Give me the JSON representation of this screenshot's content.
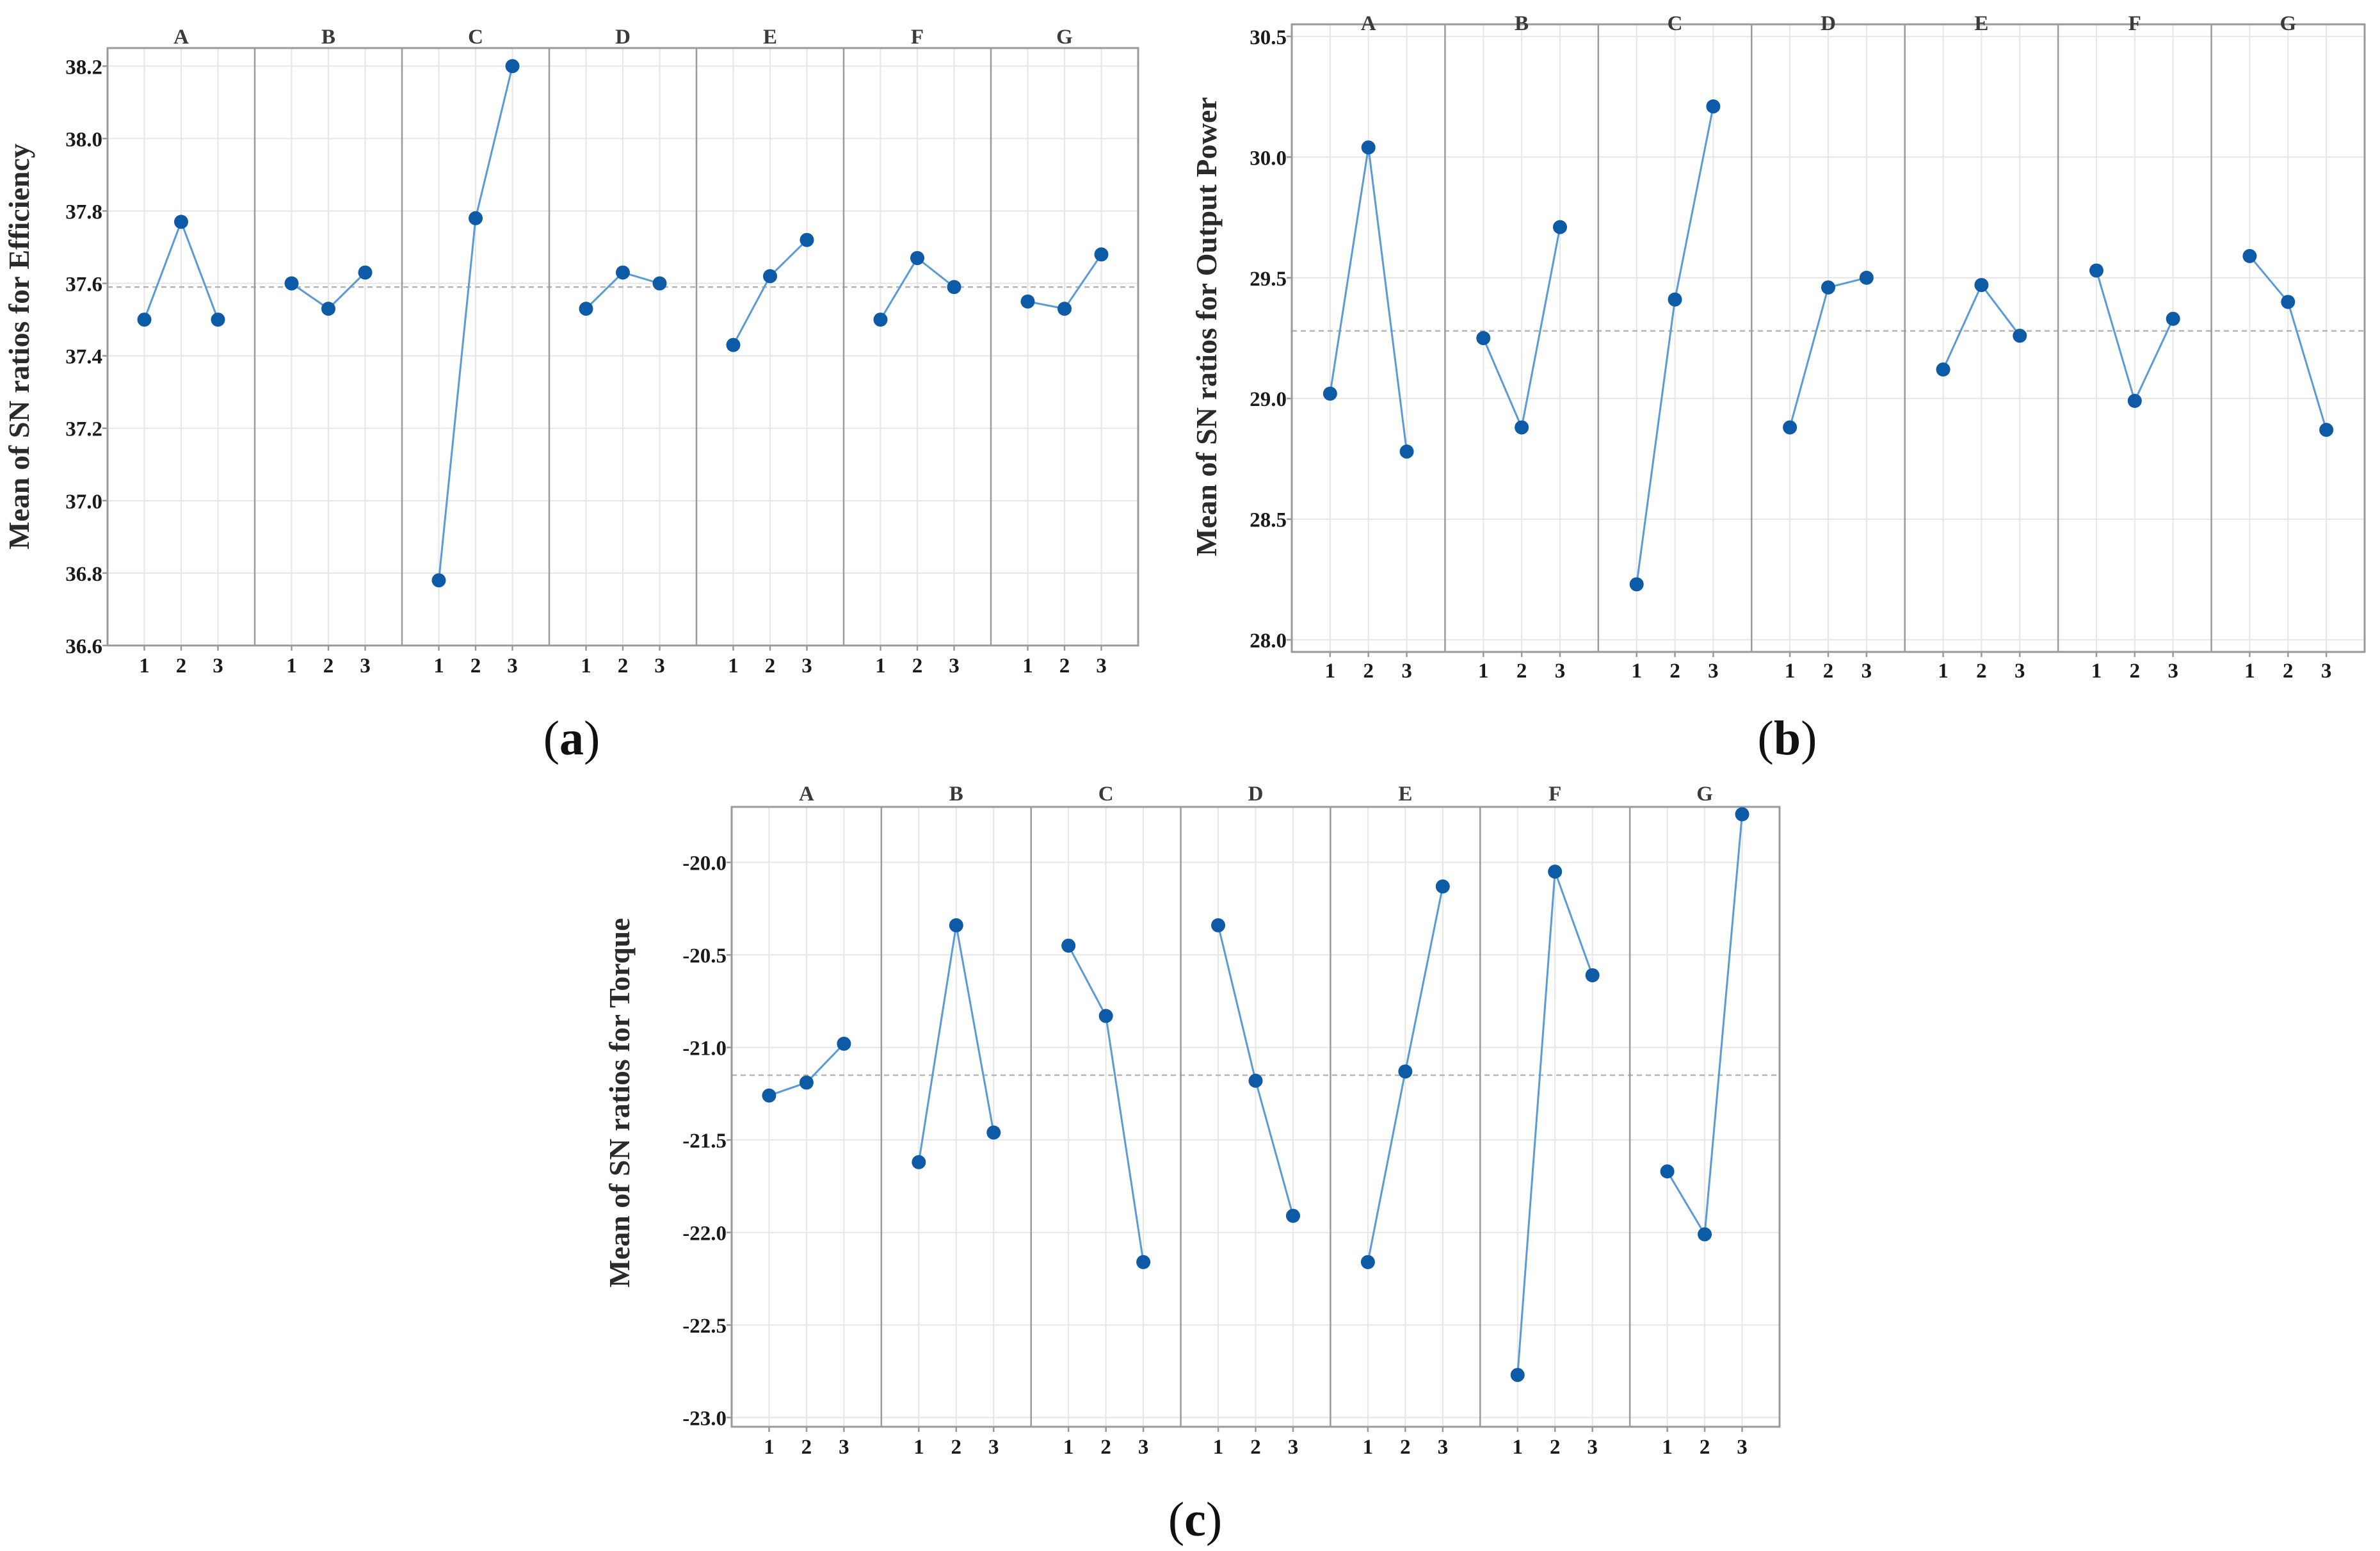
{
  "colors": {
    "point": "#0d5aa7",
    "line": "#5b9bd5",
    "grid": "#e6e6e6",
    "frame": "#9a9a9a",
    "mean_line": "#b5b5b5"
  },
  "chart_data": [
    {
      "type": "line",
      "panel": "a",
      "caption_parts": [
        "(",
        "a",
        ")"
      ],
      "ylabel": "Mean of SN ratios for Efficiency",
      "ylim": [
        36.6,
        38.25
      ],
      "yticks": [
        36.6,
        36.8,
        37.0,
        37.2,
        37.4,
        37.6,
        37.8,
        38.0,
        38.2
      ],
      "ytick_labels": [
        "36.6",
        "36.8",
        "37.0",
        "37.2",
        "37.4",
        "37.6",
        "37.8",
        "38.0",
        "38.2"
      ],
      "mean_line": 37.59,
      "level_labels": [
        "1",
        "2",
        "3"
      ],
      "factors": [
        {
          "name": "A",
          "values": [
            37.5,
            37.77,
            37.5
          ]
        },
        {
          "name": "B",
          "values": [
            37.6,
            37.53,
            37.63
          ]
        },
        {
          "name": "C",
          "values": [
            36.78,
            37.78,
            38.2
          ]
        },
        {
          "name": "D",
          "values": [
            37.53,
            37.63,
            37.6
          ]
        },
        {
          "name": "E",
          "values": [
            37.43,
            37.62,
            37.72
          ]
        },
        {
          "name": "F",
          "values": [
            37.5,
            37.67,
            37.59
          ]
        },
        {
          "name": "G",
          "values": [
            37.55,
            37.53,
            37.68
          ]
        }
      ]
    },
    {
      "type": "line",
      "panel": "b",
      "caption_parts": [
        "(",
        "b",
        ")"
      ],
      "ylabel": "Mean of SN ratios for Output Power",
      "ylim": [
        27.95,
        30.55
      ],
      "yticks": [
        28.0,
        28.5,
        29.0,
        29.5,
        30.0,
        30.5
      ],
      "ytick_labels": [
        "28.0",
        "28.5",
        "29.0",
        "29.5",
        "30.0",
        "30.5"
      ],
      "mean_line": 29.28,
      "level_labels": [
        "1",
        "2",
        "3"
      ],
      "factors": [
        {
          "name": "A",
          "values": [
            29.02,
            30.04,
            28.78
          ]
        },
        {
          "name": "B",
          "values": [
            29.25,
            28.88,
            29.71
          ]
        },
        {
          "name": "C",
          "values": [
            28.23,
            29.41,
            30.21
          ]
        },
        {
          "name": "D",
          "values": [
            28.88,
            29.46,
            29.5
          ]
        },
        {
          "name": "E",
          "values": [
            29.12,
            29.47,
            29.26
          ]
        },
        {
          "name": "F",
          "values": [
            29.53,
            28.99,
            29.33
          ]
        },
        {
          "name": "G",
          "values": [
            29.59,
            29.4,
            28.87
          ]
        }
      ]
    },
    {
      "type": "line",
      "panel": "c",
      "caption_parts": [
        "(",
        "c",
        ")"
      ],
      "ylabel": "Mean of SN ratios for Torque",
      "ylim": [
        -23.05,
        -19.7
      ],
      "yticks": [
        -23.0,
        -22.5,
        -22.0,
        -21.5,
        -21.0,
        -20.5,
        -20.0
      ],
      "ytick_labels": [
        "-23.0",
        "-22.5",
        "-22.0",
        "-21.5",
        "-21.0",
        "-20.5",
        "-20.0"
      ],
      "mean_line": -21.15,
      "level_labels": [
        "1",
        "2",
        "3"
      ],
      "factors": [
        {
          "name": "A",
          "values": [
            -21.26,
            -21.19,
            -20.98
          ]
        },
        {
          "name": "B",
          "values": [
            -21.62,
            -20.34,
            -21.46
          ]
        },
        {
          "name": "C",
          "values": [
            -20.45,
            -20.83,
            -22.16
          ]
        },
        {
          "name": "D",
          "values": [
            -20.34,
            -21.18,
            -21.91
          ]
        },
        {
          "name": "E",
          "values": [
            -22.16,
            -21.13,
            -20.13
          ]
        },
        {
          "name": "F",
          "values": [
            -22.77,
            -20.05,
            -20.61
          ]
        },
        {
          "name": "G",
          "values": [
            -21.67,
            -22.01,
            -19.74
          ]
        }
      ]
    }
  ]
}
